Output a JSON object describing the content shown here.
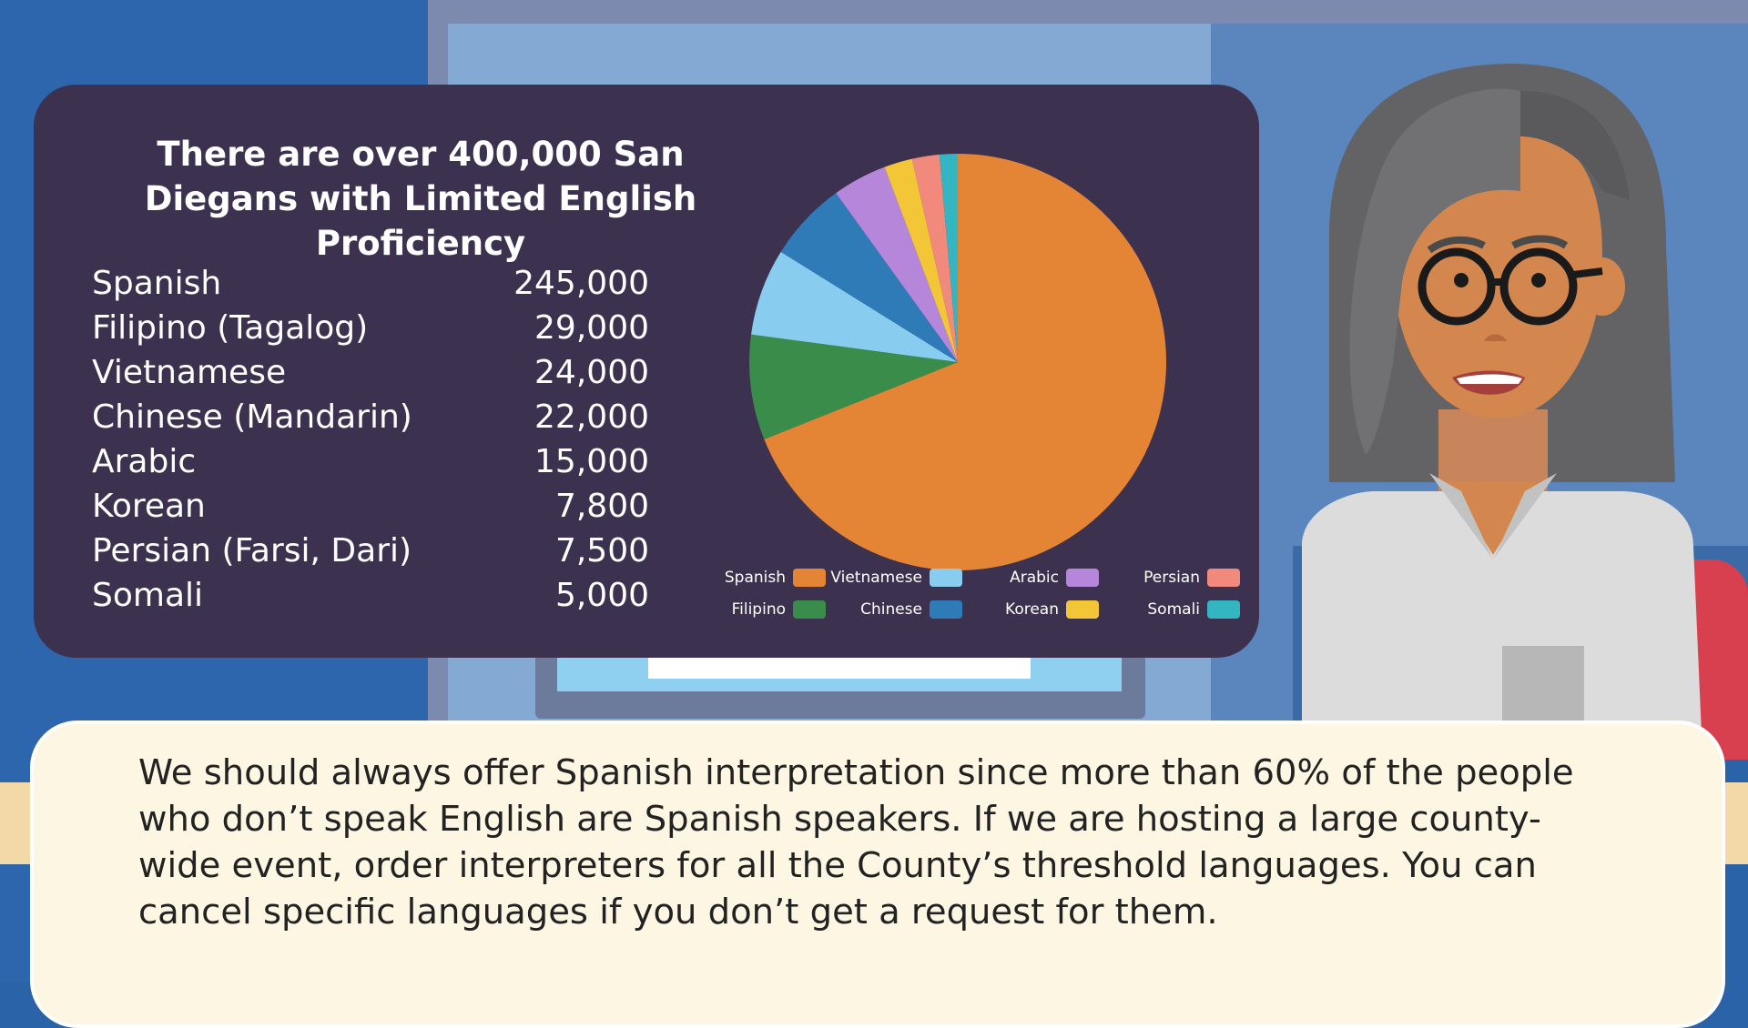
{
  "chart_data": {
    "type": "pie",
    "title": "There are over 400,000 San Diegans with Limited English Proficiency",
    "table": [
      {
        "language": "Spanish",
        "value_label": "245,000"
      },
      {
        "language": "Filipino (Tagalog)",
        "value_label": "29,000"
      },
      {
        "language": "Vietnamese",
        "value_label": "24,000"
      },
      {
        "language": "Chinese (Mandarin)",
        "value_label": "22,000"
      },
      {
        "language": "Arabic",
        "value_label": "15,000"
      },
      {
        "language": "Korean",
        "value_label": "7,800"
      },
      {
        "language": "Persian (Farsi, Dari)",
        "value_label": "7,500"
      },
      {
        "language": "Somali",
        "value_label": "5,000"
      }
    ],
    "categories": [
      "Spanish",
      "Filipino",
      "Vietnamese",
      "Chinese",
      "Arabic",
      "Korean",
      "Persian",
      "Somali"
    ],
    "values": [
      245000,
      29000,
      24000,
      22000,
      15000,
      7800,
      7500,
      5000
    ],
    "colors": [
      "#e38534",
      "#3a8c4b",
      "#88cdf0",
      "#2f7bb7",
      "#b586d9",
      "#f2c637",
      "#f18a7d",
      "#33b6c1"
    ],
    "legend_position": "bottom"
  },
  "caption": "We should always offer Spanish interpretation since more than 60% of the people who don’t speak English are Spanish speakers. If we are hosting a large county-wide event, order interpreters for all the County’s threshold languages. You can cancel specific languages if you don’t get a request for them."
}
